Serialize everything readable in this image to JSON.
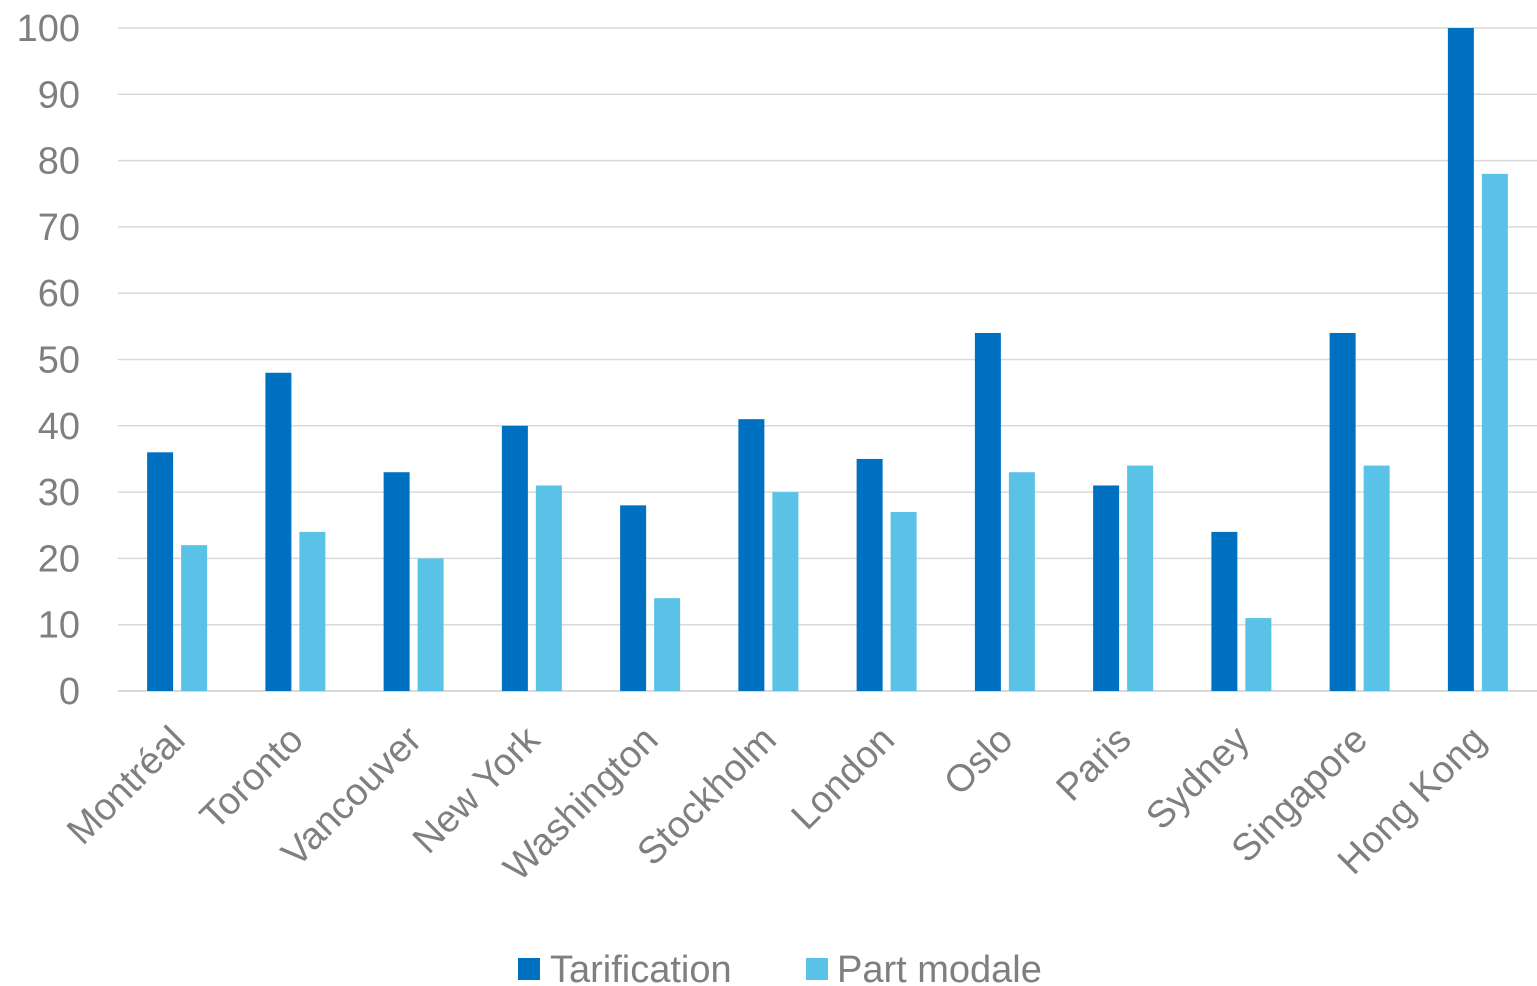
{
  "chart_data": {
    "type": "bar",
    "categories": [
      "Montréal",
      "Toronto",
      "Vancouver",
      "New York",
      "Washington",
      "Stockholm",
      "London",
      "Oslo",
      "Paris",
      "Sydney",
      "Singapore",
      "Hong Kong"
    ],
    "series": [
      {
        "name": "Tarification",
        "color": "#0070c0",
        "values": [
          36,
          48,
          33,
          40,
          28,
          41,
          35,
          54,
          31,
          24,
          54,
          100
        ]
      },
      {
        "name": "Part modale",
        "color": "#5bc2e7",
        "values": [
          22,
          24,
          20,
          31,
          14,
          30,
          27,
          33,
          34,
          11,
          34,
          78
        ]
      }
    ],
    "yticks": [
      "0",
      "10",
      "20",
      "30",
      "40",
      "50",
      "60",
      "70",
      "80",
      "90",
      "100"
    ],
    "ylim": [
      0,
      100
    ],
    "grid": true,
    "legend": "bottom",
    "title": "",
    "xlabel": "",
    "ylabel": ""
  }
}
